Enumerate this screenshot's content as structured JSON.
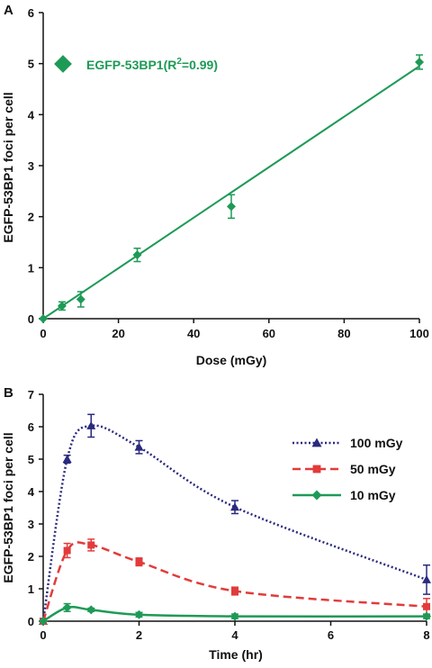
{
  "chart_data": [
    {
      "type": "scatter",
      "panel_label": "A",
      "xlabel": "Dose (mGy)",
      "ylabel": "EGFP-53BP1 foci per cell",
      "xlim": [
        0,
        100
      ],
      "ylim": [
        0,
        6
      ],
      "xticks": [
        "0",
        "20",
        "40",
        "60",
        "80",
        "100"
      ],
      "yticks": [
        "0",
        "1",
        "2",
        "3",
        "4",
        "5",
        "6"
      ],
      "grid": false,
      "legend_position": "top-left",
      "color": "#1e9a57",
      "series": [
        {
          "name": "EGFP-53BP1(R",
          "name_sup": "2",
          "name_tail": "=0.99)",
          "marker": "diamond",
          "x": [
            0,
            5,
            10,
            25,
            50,
            100
          ],
          "y": [
            0,
            0.25,
            0.38,
            1.25,
            2.2,
            5.03
          ],
          "err": [
            0,
            0.08,
            0.15,
            0.13,
            0.23,
            0.14
          ]
        }
      ],
      "fit_line": {
        "x": [
          0,
          100
        ],
        "y": [
          0,
          4.95
        ]
      }
    },
    {
      "type": "line",
      "panel_label": "B",
      "xlabel": "Time (hr)",
      "ylabel": "EGFP-53BP1 foci per cell",
      "xlim": [
        0,
        8
      ],
      "ylim": [
        0,
        7
      ],
      "xticks": [
        "0",
        "2",
        "4",
        "6",
        "8"
      ],
      "yticks": [
        "0",
        "1",
        "2",
        "3",
        "4",
        "5",
        "6",
        "7"
      ],
      "grid": false,
      "legend_position": "top-right",
      "series": [
        {
          "name": "100 mGy",
          "color": "#2a2a7e",
          "marker": "triangle",
          "dash": "dotted",
          "x": [
            0,
            0.5,
            1,
            2,
            4,
            8
          ],
          "y": [
            0,
            5.0,
            6.03,
            5.37,
            3.52,
            1.28
          ],
          "err": [
            0,
            0.12,
            0.35,
            0.2,
            0.2,
            0.45
          ]
        },
        {
          "name": "50 mGy",
          "color": "#e23b3b",
          "marker": "square",
          "dash": "dashed",
          "x": [
            0,
            0.5,
            1,
            2,
            4,
            8
          ],
          "y": [
            0,
            2.18,
            2.35,
            1.83,
            0.93,
            0.45
          ],
          "err": [
            0,
            0.22,
            0.18,
            0.12,
            0.12,
            0.25
          ]
        },
        {
          "name": "10 mGy",
          "color": "#1e9a57",
          "marker": "diamond",
          "dash": "solid",
          "x": [
            0,
            0.5,
            1,
            2,
            4,
            8
          ],
          "y": [
            0,
            0.42,
            0.35,
            0.2,
            0.15,
            0.15
          ],
          "err": [
            0,
            0.12,
            0.05,
            0.07,
            0.07,
            0.07
          ]
        }
      ]
    }
  ]
}
